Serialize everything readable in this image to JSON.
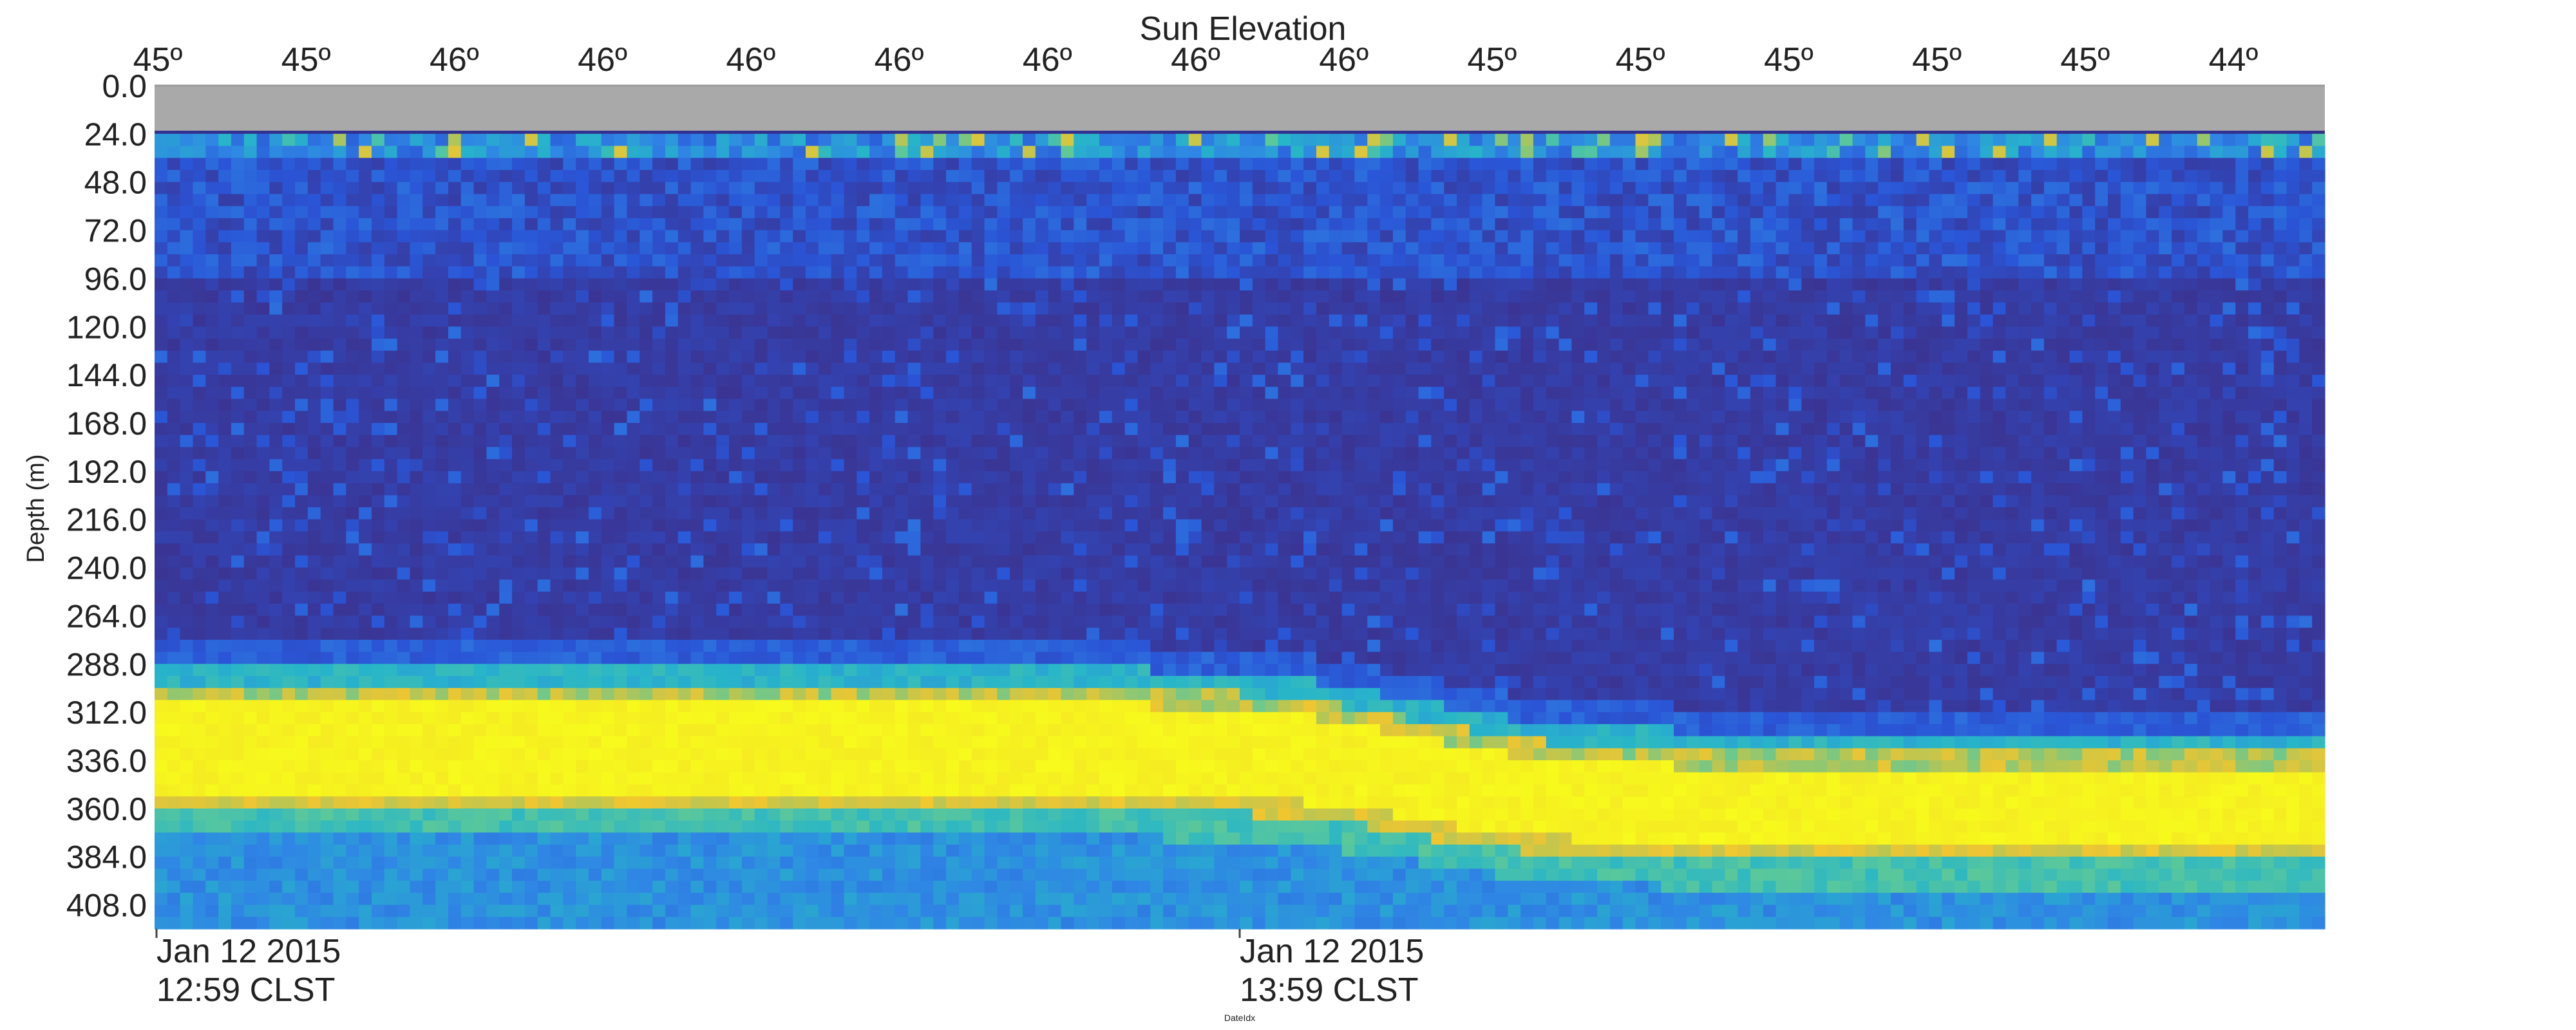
{
  "chart_data": {
    "type": "heatmap",
    "title": "Sun Elevation",
    "xlabel": "DateIdx",
    "ylabel": "Depth (m)",
    "top_axis_ticks": [
      "45º",
      "45º",
      "46º",
      "46º",
      "46º",
      "46º",
      "46º",
      "46º",
      "46º",
      "45º",
      "45º",
      "45º",
      "45º",
      "45º",
      "44º"
    ],
    "y_ticks": [
      "0.0",
      "24.0",
      "48.0",
      "72.0",
      "96.0",
      "120.0",
      "144.0",
      "168.0",
      "192.0",
      "216.0",
      "240.0",
      "264.0",
      "288.0",
      "312.0",
      "336.0",
      "360.0",
      "384.0",
      "408.0"
    ],
    "ylim": [
      0,
      420
    ],
    "x_ticks": [
      {
        "date": "Jan 12 2015",
        "time": "12:59 CLST"
      },
      {
        "date": "Jan 12 2015",
        "time": "13:59 CLST"
      }
    ],
    "no_data_band_depth": [
      0,
      24
    ],
    "strong_scattering_layer": {
      "description": "high backscatter band",
      "depth_start": [
        308,
        340
      ],
      "depth_end": [
        352,
        378
      ]
    },
    "colormap": [
      "#3a3594",
      "#2a55d6",
      "#2f86e4",
      "#27b5c9",
      "#5bc89a",
      "#b8c653",
      "#f0c630",
      "#f7fa1c"
    ],
    "no_data_color": "#a9a9a9"
  }
}
